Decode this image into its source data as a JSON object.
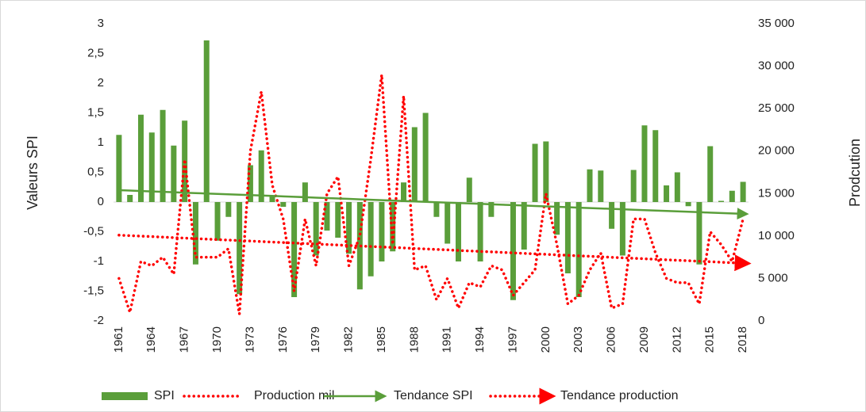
{
  "chart_data": {
    "type": "bar",
    "y_axis_label": "Valeurs SPI",
    "y2_axis_label": "Prodcution",
    "categories": [
      "1961",
      null,
      null,
      "1964",
      null,
      null,
      "1967",
      null,
      null,
      "1970",
      null,
      null,
      "1973",
      null,
      null,
      "1976",
      null,
      null,
      "1979",
      null,
      null,
      "1982",
      null,
      null,
      "1985",
      null,
      null,
      "1988",
      null,
      null,
      "1991",
      null,
      null,
      "1994",
      null,
      null,
      "1997",
      null,
      null,
      "2000",
      null,
      null,
      "2003",
      null,
      null,
      "2006",
      null,
      null,
      "2009",
      null,
      null,
      "2012",
      null,
      null,
      "2015",
      null,
      null,
      "2018"
    ],
    "ylim": [
      -2,
      3
    ],
    "yticks": [
      -2,
      {
        "value": -1.5,
        "label": "-1,5"
      },
      -1,
      {
        "value": -0.5,
        "label": "-0,5"
      },
      0,
      {
        "value": 0.5,
        "label": "0,5"
      },
      1,
      {
        "value": 1.5,
        "label": "1,5"
      },
      2,
      {
        "value": 2.5,
        "label": "2,5"
      },
      3
    ],
    "y2lim": [
      0,
      35000
    ],
    "y2ticks": [
      0,
      {
        "value": 5000,
        "label": "5 000"
      },
      {
        "value": 10000,
        "label": "10 000"
      },
      {
        "value": 15000,
        "label": "15 000"
      },
      {
        "value": 20000,
        "label": "20 000"
      },
      {
        "value": 25000,
        "label": "25 000"
      },
      {
        "value": 30000,
        "label": "30 000"
      },
      {
        "value": 35000,
        "label": "35 000"
      }
    ],
    "legend_position": "bottom",
    "series": [
      {
        "name": "SPI",
        "type": "bar",
        "color": "#5a9e3a",
        "values": [
          1.13,
          0.12,
          1.47,
          1.17,
          1.55,
          0.95,
          1.37,
          -1.05,
          2.72,
          -0.65,
          -0.25,
          -1.55,
          0.62,
          0.87,
          0.1,
          -0.08,
          -1.6,
          0.33,
          -0.9,
          -0.48,
          -0.6,
          -0.87,
          -1.47,
          -1.25,
          -1.0,
          -0.83,
          0.33,
          1.26,
          1.5,
          -0.25,
          -0.7,
          -1.0,
          0.41,
          -1.0,
          -0.25,
          0.0,
          -1.65,
          -0.8,
          0.98,
          1.02,
          -0.55,
          -1.2,
          -1.6,
          0.55,
          0.53,
          -0.45,
          -0.9,
          0.54,
          1.29,
          1.21,
          0.28,
          0.5,
          -0.07,
          -1.05,
          0.94,
          0.02,
          0.19,
          0.34
        ]
      },
      {
        "name": "Production mil",
        "type": "line",
        "axis": "y2",
        "color": "#ff0000",
        "dotted": true,
        "values": [
          5000,
          1000,
          7000,
          6500,
          7500,
          5500,
          19000,
          7500,
          7500,
          7500,
          8500,
          800,
          20000,
          27000,
          16000,
          12000,
          3500,
          12000,
          6500,
          15000,
          17000,
          6500,
          10000,
          19000,
          29000,
          9000,
          26500,
          6000,
          6500,
          2500,
          5000,
          1500,
          4500,
          4000,
          6500,
          6000,
          3000,
          4500,
          6000,
          15000,
          9000,
          2000,
          3000,
          6000,
          8000,
          1500,
          2000,
          12000,
          12000,
          8000,
          5000,
          4500,
          4500,
          2000,
          10500,
          9000,
          7000,
          12000
        ]
      },
      {
        "name": "Tendance SPI",
        "type": "line",
        "color": "#5a9e3a",
        "dotted": false,
        "arrow": true,
        "values": [
          0.2,
          0.193,
          0.186,
          0.179,
          0.172,
          0.165,
          0.158,
          0.151,
          0.144,
          0.137,
          0.13,
          0.123,
          0.116,
          0.109,
          0.102,
          0.095,
          0.088,
          0.081,
          0.074,
          0.067,
          0.06,
          0.053,
          0.046,
          0.039,
          0.032,
          0.025,
          0.018,
          0.011,
          0.004,
          -0.003,
          -0.01,
          -0.017,
          -0.024,
          -0.031,
          -0.038,
          -0.045,
          -0.052,
          -0.059,
          -0.066,
          -0.073,
          -0.08,
          -0.087,
          -0.094,
          -0.101,
          -0.108,
          -0.115,
          -0.122,
          -0.129,
          -0.136,
          -0.143,
          -0.15,
          -0.157,
          -0.164,
          -0.171,
          -0.178,
          -0.185,
          -0.192,
          -0.199
        ]
      },
      {
        "name": "Tendance production",
        "type": "line",
        "axis": "y2",
        "color": "#ff0000",
        "dotted": true,
        "arrow": true,
        "values": [
          10100,
          10042,
          9984,
          9926,
          9868,
          9810,
          9752,
          9694,
          9636,
          9578,
          9520,
          9462,
          9404,
          9346,
          9288,
          9230,
          9172,
          9114,
          9056,
          8998,
          8940,
          8882,
          8824,
          8766,
          8708,
          8650,
          8592,
          8534,
          8476,
          8418,
          8360,
          8302,
          8244,
          8186,
          8128,
          8070,
          8012,
          7954,
          7896,
          7838,
          7780,
          7722,
          7664,
          7606,
          7548,
          7490,
          7432,
          7374,
          7316,
          7258,
          7200,
          7142,
          7084,
          7026,
          6968,
          6910,
          6852,
          6794
        ]
      }
    ]
  }
}
